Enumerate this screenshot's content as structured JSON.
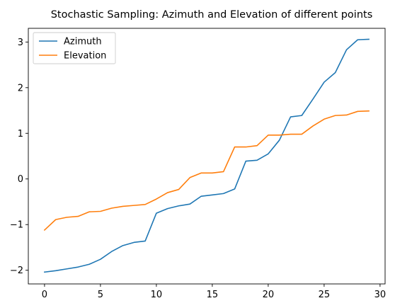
{
  "chart_data": {
    "type": "line",
    "title": "Stochastic Sampling: Azimuth and Elevation of different points",
    "xlabel": "",
    "ylabel": "",
    "xlim": [
      -1.45,
      30.45
    ],
    "ylim": [
      -2.3,
      3.3
    ],
    "xticks": [
      0,
      5,
      10,
      15,
      20,
      25,
      30
    ],
    "yticks": [
      -2,
      -1,
      0,
      1,
      2,
      3
    ],
    "tick_labels": {
      "x": [
        "0",
        "5",
        "10",
        "15",
        "20",
        "25",
        "30"
      ],
      "y": [
        "−2",
        "−1",
        "0",
        "1",
        "2",
        "3"
      ]
    },
    "grid": false,
    "legend": "top-left",
    "x": [
      0,
      1,
      2,
      3,
      4,
      5,
      6,
      7,
      8,
      9,
      10,
      11,
      12,
      13,
      14,
      15,
      16,
      17,
      18,
      19,
      20,
      21,
      22,
      23,
      24,
      25,
      26,
      27,
      28,
      29
    ],
    "series": [
      {
        "name": "Azimuth",
        "color": "#1f77b4",
        "values": [
          -2.04,
          -2.01,
          -1.97,
          -1.93,
          -1.87,
          -1.76,
          -1.59,
          -1.46,
          -1.39,
          -1.36,
          -0.75,
          -0.65,
          -0.59,
          -0.55,
          -0.38,
          -0.35,
          -0.32,
          -0.22,
          0.39,
          0.41,
          0.55,
          0.85,
          1.36,
          1.39,
          1.75,
          2.12,
          2.33,
          2.83,
          3.05,
          3.06
        ]
      },
      {
        "name": "Elevation",
        "color": "#ff7f0e",
        "values": [
          -1.12,
          -0.89,
          -0.84,
          -0.82,
          -0.72,
          -0.71,
          -0.64,
          -0.6,
          -0.58,
          -0.56,
          -0.44,
          -0.3,
          -0.23,
          0.03,
          0.13,
          0.13,
          0.16,
          0.7,
          0.7,
          0.73,
          0.96,
          0.96,
          0.98,
          0.98,
          1.16,
          1.31,
          1.39,
          1.4,
          1.48,
          1.49
        ]
      }
    ]
  }
}
